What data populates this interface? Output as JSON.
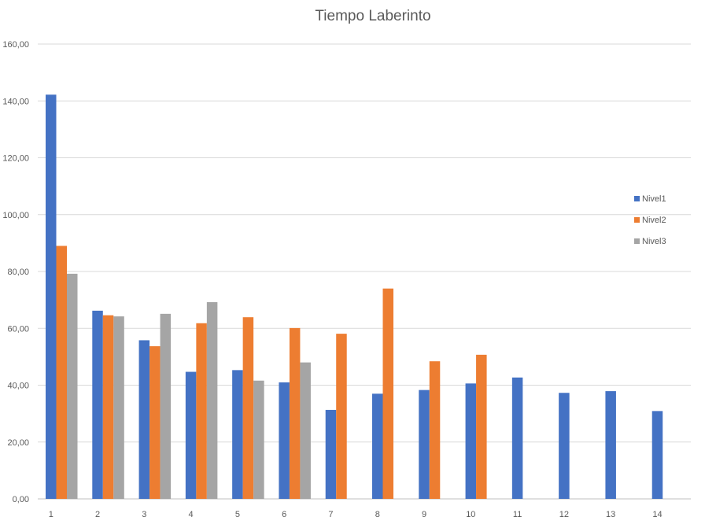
{
  "chart_data": {
    "type": "bar",
    "title": "Tiempo Laberinto",
    "xlabel": "",
    "ylabel": "",
    "ylim": [
      0,
      160
    ],
    "yticks": [
      "0,00",
      "20,00",
      "40,00",
      "60,00",
      "80,00",
      "100,00",
      "120,00",
      "140,00",
      "160,00"
    ],
    "categories": [
      "1",
      "2",
      "3",
      "4",
      "5",
      "6",
      "7",
      "8",
      "9",
      "10",
      "11",
      "12",
      "13",
      "14"
    ],
    "series": [
      {
        "name": "Nivel1",
        "color": "#4472C4",
        "values": [
          142.2,
          66.2,
          55.8,
          44.7,
          45.3,
          41.0,
          31.3,
          37.0,
          38.3,
          40.6,
          42.7,
          37.3,
          37.9,
          30.9
        ]
      },
      {
        "name": "Nivel2",
        "color": "#ED7D31",
        "values": [
          89.0,
          64.6,
          53.7,
          61.8,
          63.9,
          60.1,
          58.1,
          74.0,
          48.4,
          50.7,
          null,
          null,
          null,
          null
        ]
      },
      {
        "name": "Nivel3",
        "color": "#A5A5A5",
        "values": [
          79.2,
          64.2,
          65.1,
          69.2,
          41.6,
          48.0,
          null,
          null,
          null,
          null,
          null,
          null,
          null,
          null
        ]
      }
    ],
    "grid": true,
    "legend": "right"
  }
}
